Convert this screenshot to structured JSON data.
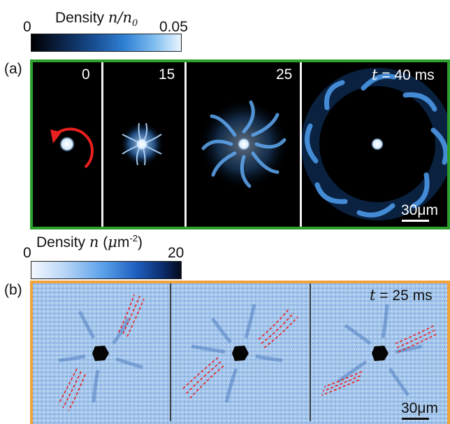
{
  "colorbar_a": {
    "title_prefix": "Density",
    "title_math": "n/n",
    "title_sub": "0",
    "min_label": "0",
    "max_label": "0.05"
  },
  "colorbar_b": {
    "title_prefix": "Density",
    "title_math": "n",
    "title_unit_open": "(",
    "title_unit_mu": "μ",
    "title_unit_m": "m",
    "title_unit_sup": "-2",
    "title_unit_close": ")",
    "min_label": "0",
    "max_label": "20"
  },
  "panel_a": {
    "label": "(a)",
    "frames": [
      {
        "time": "0"
      },
      {
        "time": "15"
      },
      {
        "time": "25"
      },
      {
        "time_prefix": "t",
        "time_rest": " = 40 ms"
      }
    ],
    "scalebar": "30μm",
    "colors": {
      "frame": "#2ca02c",
      "arrow": "#e8201e"
    }
  },
  "panel_b": {
    "label": "(b)",
    "time_prefix": "t",
    "time_rest": " = 25 ms",
    "scalebar": "30μm",
    "colors": {
      "frame": "#f0a33a",
      "dashes": "#e8201e"
    }
  }
}
